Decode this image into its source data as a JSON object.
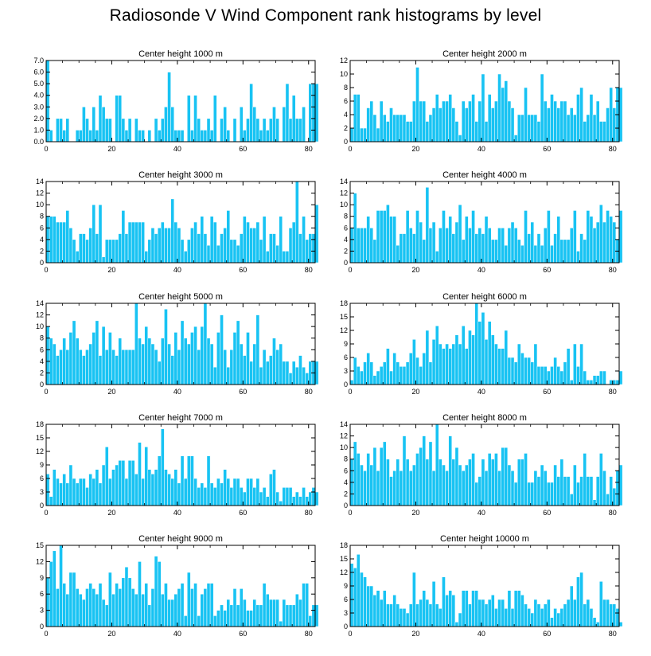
{
  "figure_title": "Radiosonde V Wind Component rank histograms by level",
  "colors": {
    "bar": "#18c3f3",
    "bar_edge": "#ffffff",
    "axis": "#000000"
  },
  "chart_data": [
    {
      "type": "bar",
      "title": "Center height 1000 m",
      "xlabel": "",
      "ylabel": "",
      "xlim": [
        0,
        82
      ],
      "ylim": [
        0,
        7
      ],
      "yticks": [
        0,
        1,
        2,
        3,
        4,
        5,
        6,
        7
      ],
      "ytick_labels": [
        "0.0",
        "1.0",
        "2.0",
        "3.0",
        "4.0",
        "5.0",
        "6.0",
        "7.0"
      ],
      "xticks": [
        0,
        20,
        40,
        60,
        80
      ],
      "xtick_labels": [
        "0",
        "20",
        "40",
        "60",
        "80"
      ],
      "x_start": 0,
      "values": [
        7,
        1,
        0,
        2,
        2,
        1,
        2,
        0,
        0,
        1,
        1,
        3,
        2,
        1,
        3,
        1,
        4,
        3,
        2,
        2,
        0,
        4,
        4,
        2,
        1,
        2,
        0,
        2,
        1,
        1,
        0,
        1,
        0,
        2,
        1,
        2,
        3,
        6,
        3,
        1,
        1,
        1,
        0,
        4,
        1,
        4,
        2,
        1,
        1,
        2,
        1,
        4,
        0,
        2,
        3,
        1,
        0,
        2,
        0,
        3,
        1,
        2,
        5,
        3,
        2,
        1,
        2,
        1,
        2,
        3,
        2,
        0,
        3,
        5,
        2,
        4,
        2,
        2,
        3,
        0,
        5,
        5,
        5
      ]
    },
    {
      "type": "bar",
      "title": "Center height 2000 m",
      "xlabel": "",
      "ylabel": "",
      "xlim": [
        0,
        82
      ],
      "ylim": [
        0,
        12
      ],
      "yticks": [
        0,
        2,
        4,
        6,
        8,
        10,
        12
      ],
      "ytick_labels": [
        "0",
        "2",
        "4",
        "6",
        "8",
        "10",
        "12"
      ],
      "xticks": [
        0,
        20,
        40,
        60,
        80
      ],
      "xtick_labels": [
        "0",
        "20",
        "40",
        "60",
        "80"
      ],
      "x_start": 0,
      "values": [
        2,
        7,
        7,
        2,
        2,
        5,
        6,
        4,
        2,
        6,
        4,
        3,
        5,
        4,
        4,
        4,
        4,
        3,
        3,
        6,
        11,
        6,
        6,
        3,
        4,
        5,
        7,
        5,
        6,
        6,
        7,
        5,
        3,
        1,
        6,
        5,
        6,
        7,
        3,
        6,
        10,
        3,
        7,
        5,
        6,
        10,
        8,
        9,
        6,
        5,
        1,
        4,
        4,
        8,
        4,
        4,
        4,
        3,
        10,
        6,
        5,
        7,
        6,
        5,
        6,
        6,
        4,
        5,
        4,
        7,
        8,
        3,
        4,
        7,
        4,
        6,
        3,
        3,
        5,
        8,
        5,
        8,
        8
      ]
    },
    {
      "type": "bar",
      "title": "Center height 3000 m",
      "xlabel": "",
      "ylabel": "",
      "xlim": [
        0,
        82
      ],
      "ylim": [
        0,
        14
      ],
      "yticks": [
        0,
        2,
        4,
        6,
        8,
        10,
        12,
        14
      ],
      "ytick_labels": [
        "0",
        "2",
        "4",
        "6",
        "8",
        "10",
        "12",
        "14"
      ],
      "xticks": [
        0,
        20,
        40,
        60,
        80
      ],
      "xtick_labels": [
        "0",
        "20",
        "40",
        "60",
        "80"
      ],
      "x_start": 0,
      "values": [
        8,
        8,
        8,
        7,
        7,
        7,
        9,
        6,
        4,
        2,
        5,
        5,
        4,
        6,
        10,
        5,
        10,
        1,
        4,
        4,
        4,
        4,
        5,
        9,
        5,
        7,
        7,
        7,
        7,
        7,
        2,
        4,
        6,
        5,
        6,
        7,
        6,
        6,
        11,
        7,
        6,
        4,
        2,
        4,
        6,
        7,
        5,
        8,
        5,
        3,
        8,
        7,
        3,
        5,
        6,
        9,
        4,
        4,
        3,
        5,
        8,
        7,
        6,
        6,
        7,
        4,
        8,
        2,
        5,
        5,
        3,
        8,
        2,
        2,
        6,
        7,
        14,
        5,
        8,
        4,
        5,
        5,
        10
      ]
    },
    {
      "type": "bar",
      "title": "Center height 4000 m",
      "xlabel": "",
      "ylabel": "",
      "xlim": [
        0,
        82
      ],
      "ylim": [
        0,
        14
      ],
      "yticks": [
        0,
        2,
        4,
        6,
        8,
        10,
        12,
        14
      ],
      "ytick_labels": [
        "0",
        "2",
        "4",
        "6",
        "8",
        "10",
        "12",
        "14"
      ],
      "xticks": [
        0,
        20,
        40,
        60,
        80
      ],
      "xtick_labels": [
        "0",
        "20",
        "40",
        "60",
        "80"
      ],
      "x_start": 0,
      "values": [
        6,
        12,
        6,
        6,
        6,
        8,
        6,
        4,
        9,
        9,
        9,
        10,
        8,
        8,
        3,
        5,
        5,
        9,
        6,
        5,
        9,
        7,
        4,
        13,
        6,
        7,
        2,
        6,
        9,
        6,
        8,
        5,
        7,
        10,
        4,
        8,
        6,
        9,
        5,
        6,
        5,
        8,
        6,
        4,
        4,
        6,
        6,
        3,
        6,
        7,
        6,
        4,
        3,
        9,
        5,
        7,
        3,
        5,
        3,
        6,
        9,
        3,
        5,
        8,
        4,
        4,
        4,
        6,
        9,
        2,
        5,
        4,
        9,
        8,
        6,
        7,
        10,
        7,
        9,
        8,
        7,
        4,
        9
      ]
    },
    {
      "type": "bar",
      "title": "Center height 5000 m",
      "xlabel": "",
      "ylabel": "",
      "xlim": [
        0,
        82
      ],
      "ylim": [
        0,
        14
      ],
      "yticks": [
        0,
        2,
        4,
        6,
        8,
        10,
        12,
        14
      ],
      "ytick_labels": [
        "0",
        "2",
        "4",
        "6",
        "8",
        "10",
        "12",
        "14"
      ],
      "xticks": [
        0,
        20,
        40,
        60,
        80
      ],
      "xtick_labels": [
        "0",
        "20",
        "40",
        "60",
        "80"
      ],
      "x_start": 0,
      "values": [
        10,
        8,
        7,
        5,
        6,
        8,
        6,
        9,
        11,
        8,
        6,
        5,
        6,
        7,
        9,
        11,
        5,
        10,
        6,
        9,
        6,
        5,
        8,
        6,
        6,
        6,
        6,
        14,
        8,
        7,
        10,
        8,
        7,
        6,
        4,
        8,
        13,
        7,
        5,
        9,
        6,
        11,
        8,
        7,
        9,
        10,
        6,
        10,
        14,
        8,
        7,
        3,
        9,
        12,
        6,
        3,
        6,
        9,
        11,
        7,
        5,
        9,
        4,
        7,
        12,
        3,
        6,
        4,
        5,
        8,
        6,
        7,
        4,
        4,
        2,
        4,
        3,
        5,
        3,
        2,
        4,
        4,
        4
      ]
    },
    {
      "type": "bar",
      "title": "Center height 6000 m",
      "xlabel": "",
      "ylabel": "",
      "xlim": [
        0,
        82
      ],
      "ylim": [
        0,
        18
      ],
      "yticks": [
        0,
        3,
        6,
        9,
        12,
        15,
        18
      ],
      "ytick_labels": [
        "0",
        "3",
        "6",
        "9",
        "12",
        "15",
        "18"
      ],
      "xticks": [
        0,
        20,
        40,
        60,
        80
      ],
      "xtick_labels": [
        "0",
        "20",
        "40",
        "60",
        "80"
      ],
      "x_start": 0,
      "values": [
        1,
        6,
        4,
        3,
        5,
        7,
        5,
        2,
        3,
        4,
        5,
        8,
        3,
        7,
        5,
        4,
        4,
        5,
        7,
        10,
        6,
        4,
        7,
        12,
        5,
        10,
        13,
        9,
        8,
        9,
        8,
        9,
        11,
        9,
        13,
        8,
        12,
        11,
        18,
        14,
        16,
        10,
        14,
        11,
        9,
        8,
        8,
        12,
        6,
        6,
        5,
        9,
        7,
        6,
        6,
        5,
        9,
        4,
        4,
        4,
        3,
        4,
        6,
        4,
        3,
        5,
        8,
        1,
        9,
        4,
        9,
        3,
        1,
        1,
        2,
        2,
        3,
        3,
        0,
        1,
        1,
        1,
        3
      ]
    },
    {
      "type": "bar",
      "title": "Center height 7000 m",
      "xlabel": "",
      "ylabel": "",
      "xlim": [
        0,
        82
      ],
      "ylim": [
        0,
        18
      ],
      "yticks": [
        0,
        3,
        6,
        9,
        12,
        15,
        18
      ],
      "ytick_labels": [
        "0",
        "3",
        "6",
        "9",
        "12",
        "15",
        "18"
      ],
      "xticks": [
        0,
        20,
        40,
        60,
        80
      ],
      "xtick_labels": [
        "0",
        "20",
        "40",
        "60",
        "80"
      ],
      "x_start": 0,
      "values": [
        7,
        2,
        8,
        6,
        5,
        7,
        5,
        9,
        6,
        5,
        6,
        6,
        4,
        7,
        6,
        8,
        5,
        9,
        13,
        6,
        8,
        9,
        10,
        10,
        6,
        10,
        10,
        7,
        14,
        6,
        13,
        8,
        7,
        8,
        11,
        17,
        8,
        7,
        6,
        8,
        5,
        11,
        6,
        11,
        11,
        6,
        4,
        5,
        4,
        11,
        5,
        4,
        6,
        5,
        8,
        6,
        4,
        6,
        6,
        4,
        3,
        6,
        6,
        4,
        6,
        3,
        4,
        2,
        7,
        8,
        3,
        1,
        4,
        4,
        4,
        2,
        3,
        2,
        4,
        2,
        3,
        4,
        3
      ]
    },
    {
      "type": "bar",
      "title": "Center height 8000 m",
      "xlabel": "",
      "ylabel": "",
      "xlim": [
        0,
        82
      ],
      "ylim": [
        0,
        14
      ],
      "yticks": [
        0,
        2,
        4,
        6,
        8,
        10,
        12,
        14
      ],
      "ytick_labels": [
        "0",
        "2",
        "4",
        "6",
        "8",
        "10",
        "12",
        "14"
      ],
      "xticks": [
        0,
        20,
        40,
        60,
        80
      ],
      "xtick_labels": [
        "0",
        "20",
        "40",
        "60",
        "80"
      ],
      "x_start": 0,
      "values": [
        8,
        11,
        9,
        7,
        6,
        9,
        7,
        10,
        6,
        10,
        11,
        8,
        5,
        6,
        8,
        6,
        12,
        8,
        6,
        7,
        9,
        10,
        12,
        8,
        11,
        6,
        14,
        8,
        7,
        6,
        12,
        8,
        10,
        7,
        6,
        7,
        8,
        9,
        4,
        5,
        8,
        6,
        9,
        8,
        9,
        6,
        10,
        10,
        7,
        6,
        4,
        8,
        8,
        9,
        4,
        4,
        6,
        5,
        7,
        6,
        4,
        4,
        7,
        5,
        8,
        5,
        5,
        2,
        7,
        4,
        5,
        9,
        5,
        5,
        1,
        5,
        9,
        6,
        2,
        5,
        3,
        6,
        7
      ]
    },
    {
      "type": "bar",
      "title": "Center height 9000 m",
      "xlabel": "",
      "ylabel": "",
      "xlim": [
        0,
        82
      ],
      "ylim": [
        0,
        15
      ],
      "yticks": [
        0,
        3,
        6,
        9,
        12,
        15
      ],
      "ytick_labels": [
        "0",
        "3",
        "6",
        "9",
        "12",
        "15"
      ],
      "xticks": [
        0,
        20,
        40,
        60,
        80
      ],
      "xtick_labels": [
        "0",
        "20",
        "40",
        "60",
        "80"
      ],
      "x_start": 0,
      "values": [
        9,
        12,
        14,
        7,
        15,
        8,
        6,
        10,
        10,
        7,
        6,
        5,
        7,
        8,
        7,
        6,
        8,
        5,
        4,
        10,
        6,
        8,
        7,
        9,
        11,
        9,
        7,
        6,
        12,
        6,
        8,
        4,
        7,
        13,
        12,
        6,
        8,
        5,
        5,
        6,
        7,
        8,
        2,
        10,
        7,
        8,
        2,
        6,
        7,
        8,
        8,
        2,
        3,
        4,
        3,
        5,
        4,
        7,
        4,
        7,
        5,
        3,
        3,
        5,
        4,
        4,
        8,
        6,
        5,
        5,
        5,
        1,
        5,
        4,
        4,
        4,
        6,
        5,
        8,
        8,
        2,
        4,
        4
      ]
    },
    {
      "type": "bar",
      "title": "Center height 10000 m",
      "xlabel": "",
      "ylabel": "",
      "xlim": [
        0,
        82
      ],
      "ylim": [
        0,
        18
      ],
      "yticks": [
        0,
        3,
        6,
        9,
        12,
        15,
        18
      ],
      "ytick_labels": [
        "0",
        "3",
        "6",
        "9",
        "12",
        "15",
        "18"
      ],
      "xticks": [
        0,
        20,
        40,
        60,
        80
      ],
      "xtick_labels": [
        "0",
        "20",
        "40",
        "60",
        "80"
      ],
      "x_start": 0,
      "values": [
        14,
        13,
        16,
        12,
        11,
        9,
        9,
        7,
        8,
        6,
        8,
        5,
        5,
        7,
        5,
        4,
        4,
        3,
        5,
        12,
        5,
        6,
        8,
        6,
        5,
        10,
        5,
        4,
        11,
        7,
        8,
        7,
        1,
        3,
        8,
        8,
        5,
        8,
        8,
        6,
        6,
        5,
        6,
        7,
        4,
        6,
        6,
        4,
        8,
        4,
        8,
        8,
        7,
        5,
        4,
        3,
        6,
        5,
        4,
        5,
        6,
        2,
        4,
        3,
        4,
        5,
        6,
        9,
        6,
        11,
        12,
        5,
        6,
        4,
        2,
        1,
        10,
        6,
        6,
        5,
        5,
        4,
        1
      ]
    }
  ]
}
